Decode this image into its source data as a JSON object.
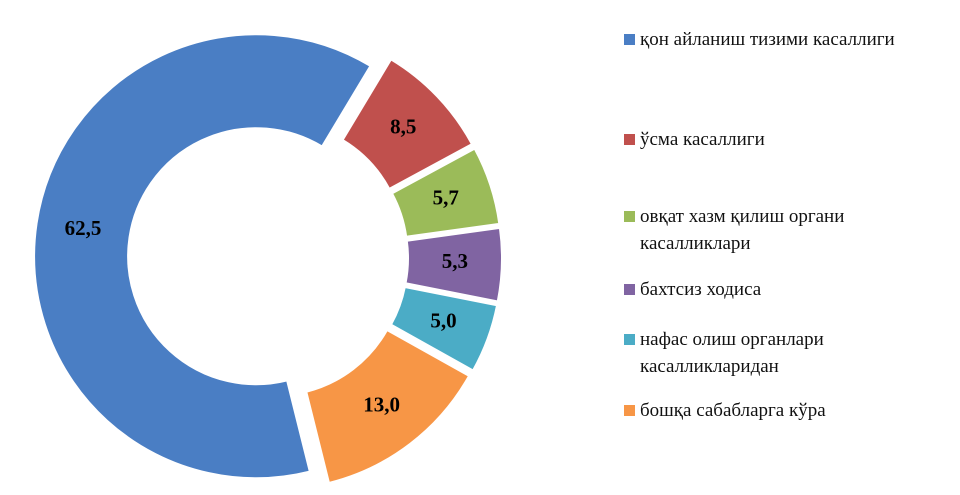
{
  "chart_data": {
    "type": "donut",
    "series": [
      {
        "name": "қон айланиш тизими касаллиги",
        "color": "#4a7ec4",
        "values": [
          62.5
        ],
        "value_labels": [
          "62,5"
        ]
      },
      {
        "name": "ўсма касаллиги",
        "color": "#c0504d",
        "values": [
          8.5
        ],
        "value_labels": [
          "8,5"
        ]
      },
      {
        "name": "овқат хазм қилиш органи касалликлари",
        "color": "#9bbb59",
        "values": [
          5.7
        ],
        "value_labels": [
          "5,7"
        ]
      },
      {
        "name": "бахтсиз ходиса",
        "color": "#8064a2",
        "values": [
          5.3
        ],
        "value_labels": [
          "5,3"
        ]
      },
      {
        "name": "нафас олиш органлари касалликларидан",
        "color": "#4bacc6",
        "values": [
          5.0
        ],
        "value_labels": [
          "5,0"
        ]
      },
      {
        "name": "бошқа сабабларга кўра",
        "color": "#f79646",
        "values": [
          13.0
        ],
        "value_labels": [
          "13,0"
        ]
      }
    ]
  }
}
